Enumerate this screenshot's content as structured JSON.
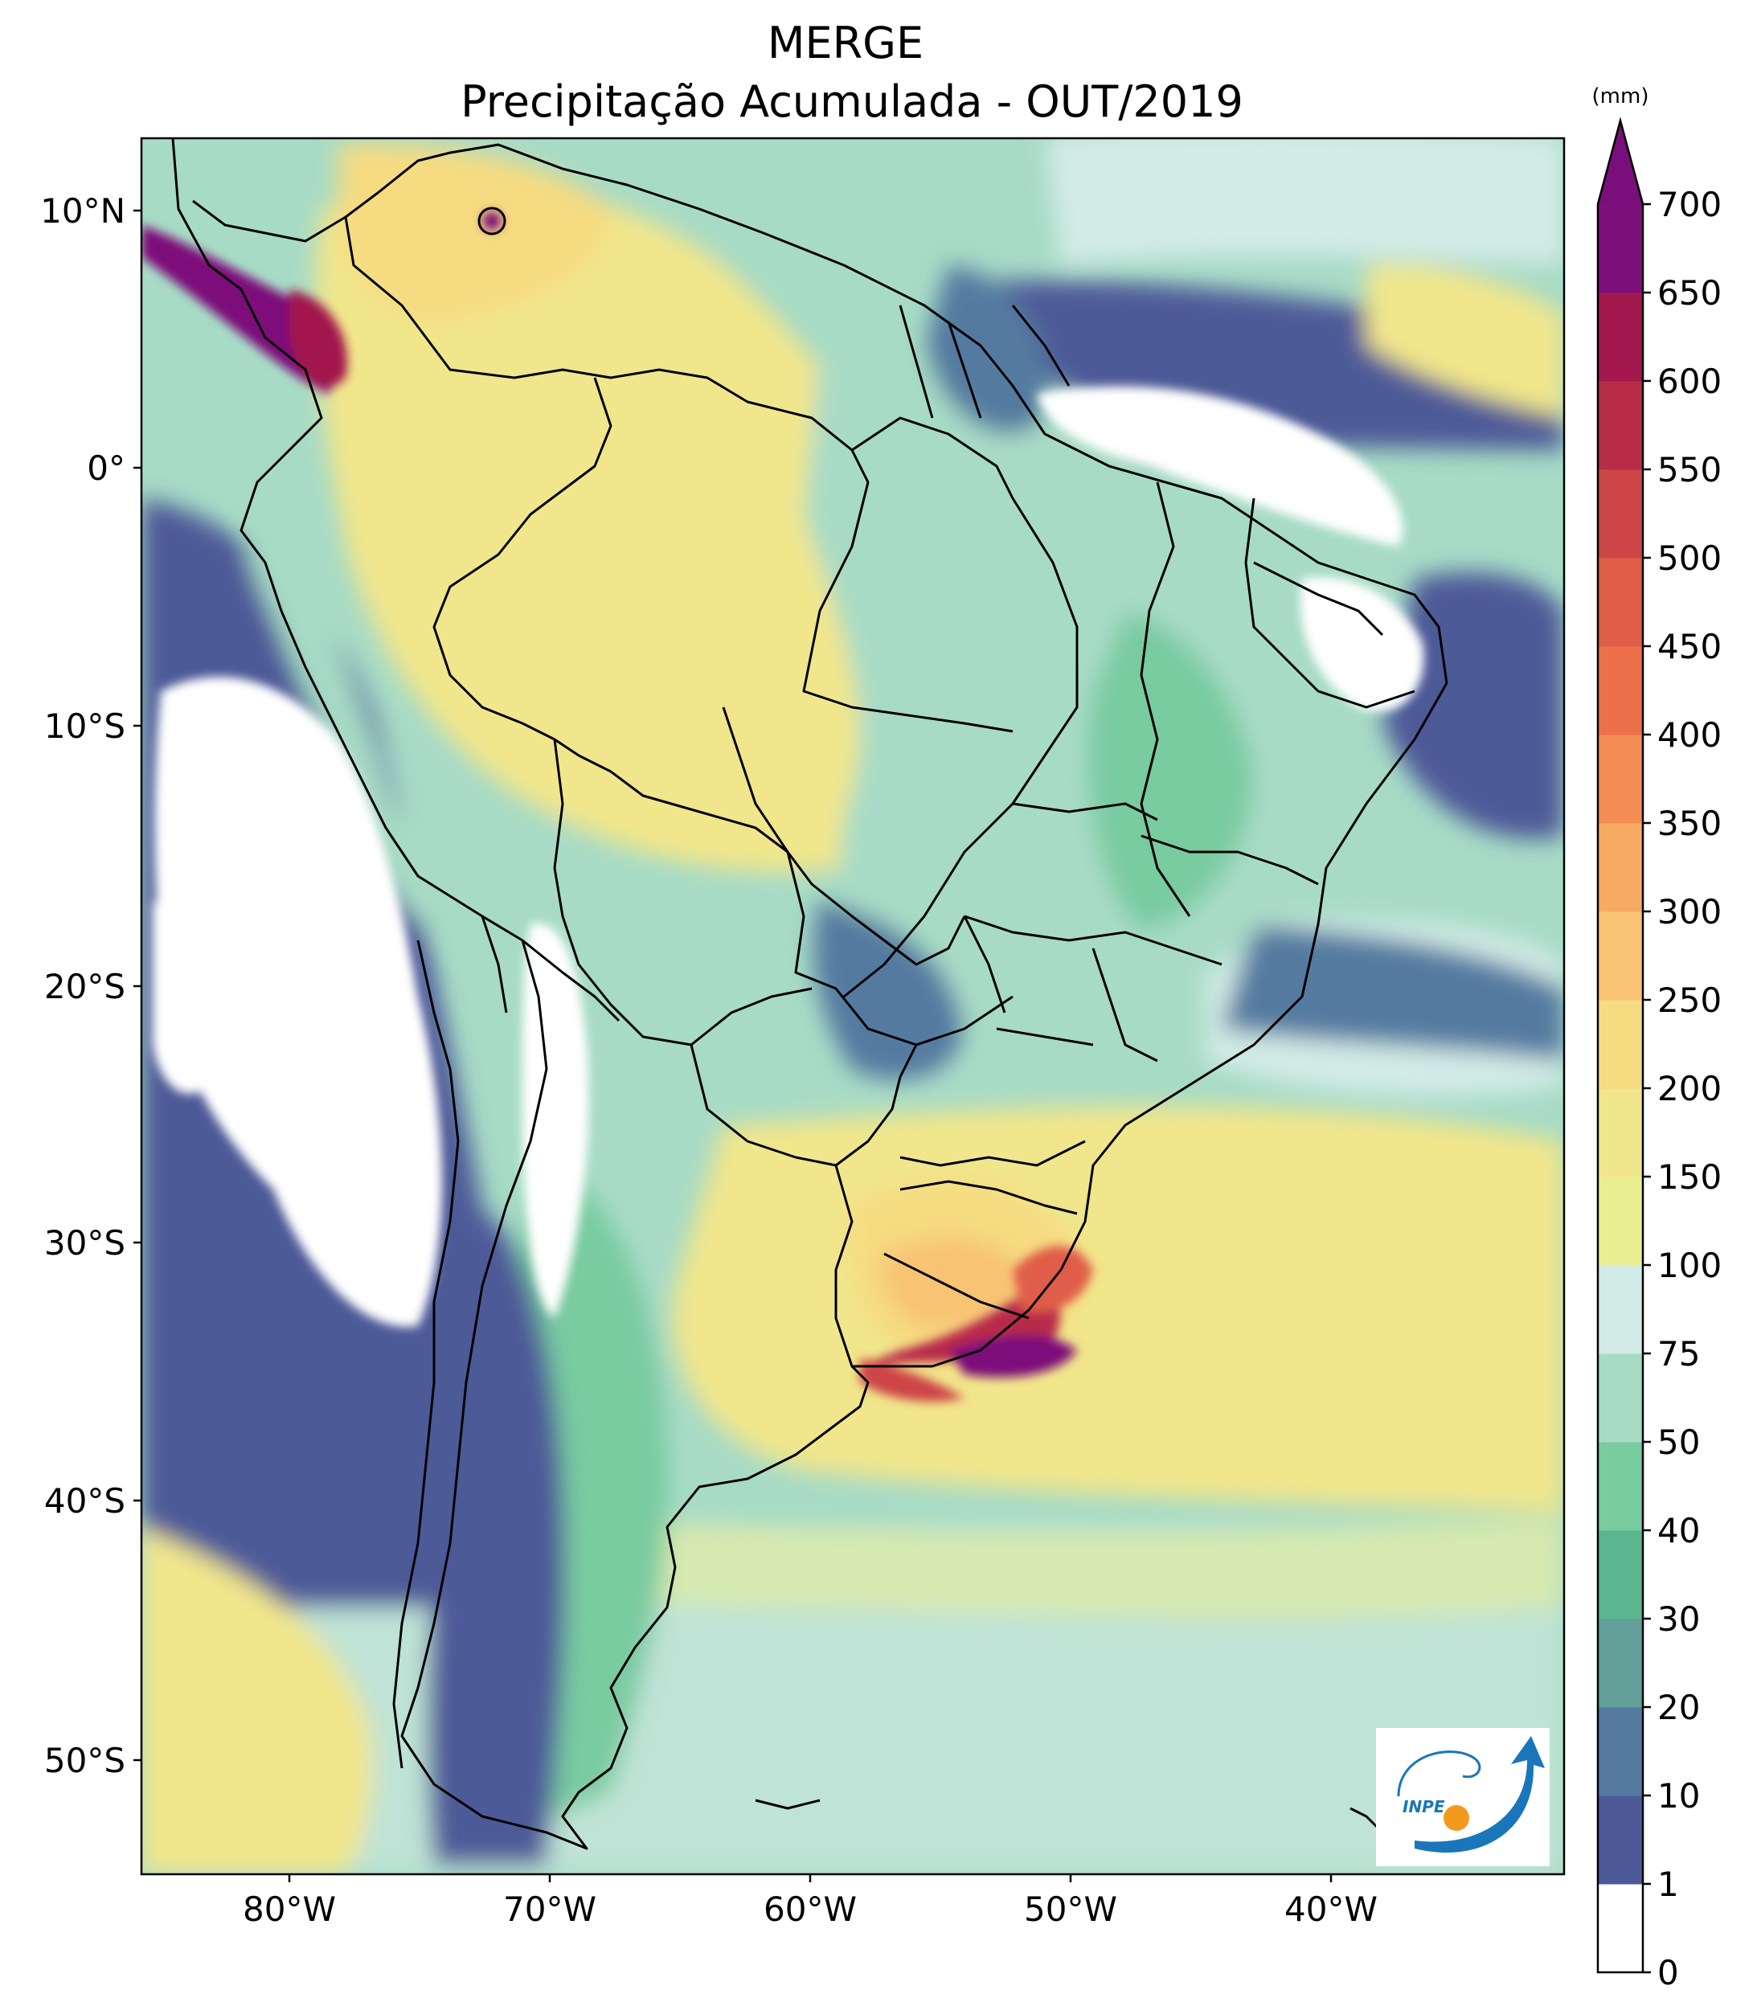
{
  "title": "MERGE",
  "subtitle": "Precipitação Acumulada - OUT/2019",
  "map": {
    "lon_labels": [
      "80°W",
      "70°W",
      "60°W",
      "50°W",
      "40°W"
    ],
    "lat_labels": [
      "10°N",
      "0°",
      "10°S",
      "20°S",
      "30°S",
      "40°S",
      "50°S"
    ]
  },
  "colorbar": {
    "unit": "(mm)",
    "levels": [
      "0",
      "1",
      "10",
      "20",
      "30",
      "40",
      "50",
      "75",
      "100",
      "150",
      "200",
      "250",
      "300",
      "350",
      "400",
      "450",
      "500",
      "550",
      "600",
      "650",
      "700"
    ],
    "colors": [
      "#ffffff",
      "#4e5a98",
      "#557aa0",
      "#62a099",
      "#5bb58f",
      "#79cba0",
      "#a7dbc6",
      "#d2ebe6",
      "#e9ef91",
      "#f1e68b",
      "#f6db81",
      "#f8c372",
      "#f7ab62",
      "#f38d53",
      "#ec714a",
      "#e05d48",
      "#cd4546",
      "#b82c48",
      "#a2184c",
      "#7d0f7a"
    ],
    "extend_color": "#7a0e7a"
  },
  "logo": {
    "text": "INPE"
  }
}
